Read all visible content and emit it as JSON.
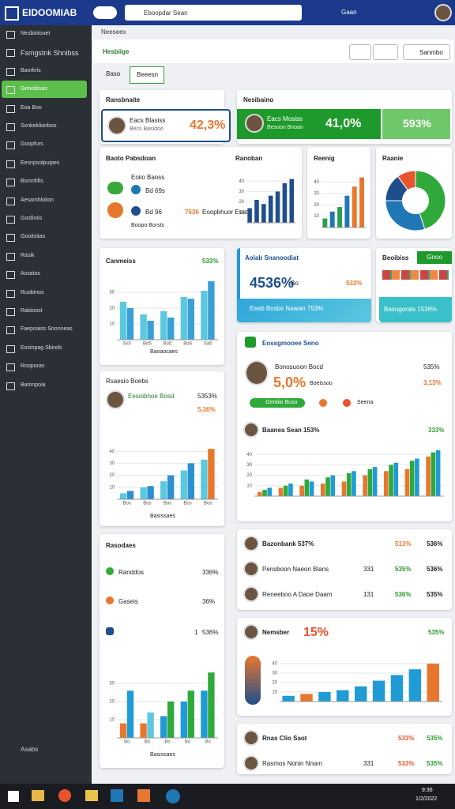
{
  "topbar": {
    "logo": "EIDOOMIAB",
    "search": "Eboopdar Sean",
    "user": "Gaan"
  },
  "sidebar": {
    "selected": 3,
    "items": [
      "Nesbiotouet",
      "Fsmgstnk Shnibss",
      "Baorkris",
      "Genobinas",
      "Eoa Boo",
      "Sxnkeklionboo",
      "Goopfurs",
      "Eesnpsolpuipes",
      "Bsmnhfis",
      "Aesamhlolion",
      "Gosfintis",
      "Gooitsitas",
      "Rasik",
      "Assatos",
      "Ruobinos",
      "Rabioost",
      "Faepoaiss Snonneas",
      "Eosinpag Sbinds",
      "Rooporas",
      "Bamnpoia"
    ],
    "footer": "Asabs"
  },
  "toolbar": {
    "breadcrumb": "Neeseex",
    "title": "Hesbiige",
    "button": "Sanmbo",
    "tabs": [
      "Baso",
      "Beeesn"
    ]
  },
  "cards": {
    "ransbnaite": {
      "title": "Ransbnaite",
      "name": "Eacs Blasiss",
      "sub": "Becs Basidoo",
      "value": "42,3%"
    },
    "nesibaino": {
      "title": "Nesibaino",
      "name": "Eacs Mosiss",
      "sub": "Besoon Bnoan",
      "value": "41,0%",
      "side": "593%"
    },
    "baoto": {
      "title": "Baoto Pabsdoan",
      "legend": [
        "Eoiio Baoss",
        "Bd 69s",
        "Bd 96",
        "Boopo Borsts"
      ],
      "value": "7636",
      "note": "Eoopbhuor Esato",
      "chart_title": "Ranoban",
      "chart": {
        "type": "bar",
        "categories": [
          null,
          null,
          null,
          null,
          null,
          null,
          null
        ],
        "ylim": [
          0,
          50
        ],
        "yticks": [
          10,
          20,
          30,
          40
        ],
        "series": [
          {
            "color": "#1f4e8c",
            "values": [
              14,
              22,
              18,
              26,
              30,
              38,
              42
            ]
          }
        ]
      }
    },
    "reenig": {
      "title": "Reenig",
      "chart": {
        "type": "bar",
        "categories": [
          null,
          null,
          null,
          null,
          null,
          null
        ],
        "ylim": [
          0,
          50
        ],
        "yticks": [
          10,
          20,
          30,
          40
        ],
        "series": [
          {
            "colors": [
              "#2d9e4f",
              "#1f77b4",
              "#2d9e4f",
              "#1f77b4",
              "#e8772e",
              "#e8772e"
            ],
            "values": [
              8,
              14,
              18,
              28,
              36,
              44
            ]
          }
        ]
      }
    },
    "raanie": {
      "title": "Raanie",
      "chart": {
        "type": "pie",
        "series": [
          {
            "colors": [
              "#2faa3a",
              "#1f77b4",
              "#1f4e8c",
              "#e8542e"
            ],
            "values": [
              45,
              30,
              15,
              10
            ]
          }
        ]
      }
    },
    "canmeiss": {
      "title": "Canmeiss",
      "value": "533%",
      "xlabel": "Baoaocaes",
      "chart": {
        "type": "bar",
        "categories": [
          "Ss0",
          "Bo5",
          "Bo5",
          "Bo6",
          "Sa5"
        ],
        "ylim": [
          0,
          40
        ],
        "yticks": [
          10,
          20,
          30
        ],
        "series": [
          {
            "color": "#5bc8e0",
            "values": [
              24,
              16,
              18,
              27,
              31
            ]
          },
          {
            "color": "#3a9fd6",
            "values": [
              20,
              12,
              14,
              26,
              37
            ]
          }
        ]
      }
    },
    "aolab": {
      "title": "Aolab Snanoodiat",
      "value": "4536%",
      "unit": "Bo",
      "side": "533%",
      "footer": "Eeab Bosbs Naaian 753%"
    },
    "beoibiss": {
      "title": "Beoibiss",
      "button": "Gnoo",
      "footer": "Basogorals 1536%"
    },
    "eoss": {
      "title": "Eossgmooee Seno",
      "name": "Bonosuoon Bocd",
      "value": "5,0%",
      "sub": "Boeissoo",
      "right1": "535%",
      "right2": "3,13%",
      "pill": "Genbio Buso",
      "label": "Seena",
      "chart_title": "Baanea Sean 153%",
      "chart_side": "333%",
      "chart": {
        "type": "bar",
        "categories": [
          null,
          null,
          null,
          null,
          null,
          null,
          null,
          null,
          null
        ],
        "ylim": [
          0,
          50
        ],
        "yticks": [
          10,
          20,
          30,
          40
        ],
        "series": [
          {
            "color": "#e8772e",
            "values": [
              4,
              8,
              10,
              12,
              14,
              20,
              24,
              26,
              38
            ]
          },
          {
            "color": "#2faa3a",
            "values": [
              6,
              10,
              16,
              18,
              22,
              26,
              30,
              34,
              42
            ]
          },
          {
            "color": "#1f9bd6",
            "values": [
              8,
              12,
              14,
              20,
              24,
              28,
              32,
              36,
              44
            ]
          }
        ]
      }
    },
    "rsaesio": {
      "title": "Rsaesio Boebs",
      "sub": "Eesoibhoe Bosd",
      "value": "5353%",
      "side": "5,36%",
      "xlabel": "Basissaes",
      "chart": {
        "type": "bar",
        "categories": [
          "Bos",
          "Bos",
          "Bos",
          "Bos",
          "Bos"
        ],
        "ylim": [
          0,
          50
        ],
        "yticks": [
          10,
          20,
          30,
          40
        ],
        "series": [
          {
            "color": "#5bc8e0",
            "values": [
              5,
              10,
              15,
              24,
              33
            ]
          },
          {
            "colors": [
              "#2b8fd0",
              "#2b8fd0",
              "#2b8fd0",
              "#2b8fd0",
              "#e8772e"
            ],
            "values": [
              7,
              11,
              20,
              30,
              42
            ]
          }
        ]
      }
    },
    "rasodaes": {
      "title": "Rasodaes",
      "rows": [
        [
          "Randdos",
          "336%"
        ],
        [
          "Gaseis",
          "36%"
        ],
        [
          "1",
          "536%"
        ]
      ],
      "xlabel": "Basissaes",
      "chart": {
        "type": "bar",
        "categories": [
          "Bo",
          "Bo",
          "Bo",
          "Bo",
          "Bs"
        ],
        "ylim": [
          0,
          40
        ],
        "yticks": [
          10,
          20,
          30
        ],
        "series": [
          {
            "colors": [
              "#e8772e",
              "#e8772e",
              "#1f9bd6",
              "#1f9bd6",
              "#1f9bd6"
            ],
            "values": [
              8,
              8,
              12,
              20,
              26
            ]
          },
          {
            "colors": [
              "#1f9bd6",
              "#5bc8e0",
              "#2faa3a",
              "#2faa3a",
              "#2faa3a"
            ],
            "values": [
              26,
              14,
              20,
              26,
              36
            ]
          }
        ]
      }
    },
    "people": {
      "rows": [
        [
          "Bazonbank 537%",
          "",
          "513%",
          "536%"
        ],
        [
          "Pensboon Naeon Blans",
          "331",
          "535%",
          "536%"
        ],
        [
          "Reneeboo A Daoe Daam",
          "131",
          "536%",
          "535%"
        ]
      ]
    },
    "nemsber": {
      "title": "Nemsber",
      "value": "15%",
      "side": "535%",
      "chart": {
        "type": "bar",
        "categories": [
          null,
          null,
          null,
          null,
          null,
          null,
          null,
          null,
          null
        ],
        "ylim": [
          0,
          50
        ],
        "yticks": [
          10,
          20,
          30,
          40
        ],
        "series": [
          {
            "colors": [
              "#1f9bd6",
              "#e8772e",
              "#1f9bd6",
              "#1f9bd6",
              "#1f9bd6",
              "#1f9bd6",
              "#1f9bd6",
              "#1f9bd6",
              "#e8772e"
            ],
            "values": [
              6,
              8,
              10,
              12,
              16,
              22,
              28,
              34,
              40
            ]
          }
        ]
      }
    },
    "rnas": {
      "rows": [
        [
          "Rnas Clio Saot",
          "",
          "533%",
          "535%"
        ],
        [
          "Rasmos Nonin Nnam",
          "331",
          "533%",
          "535%"
        ]
      ]
    }
  },
  "taskbar": {
    "time": "9:36",
    "date": "1/2/2022"
  }
}
